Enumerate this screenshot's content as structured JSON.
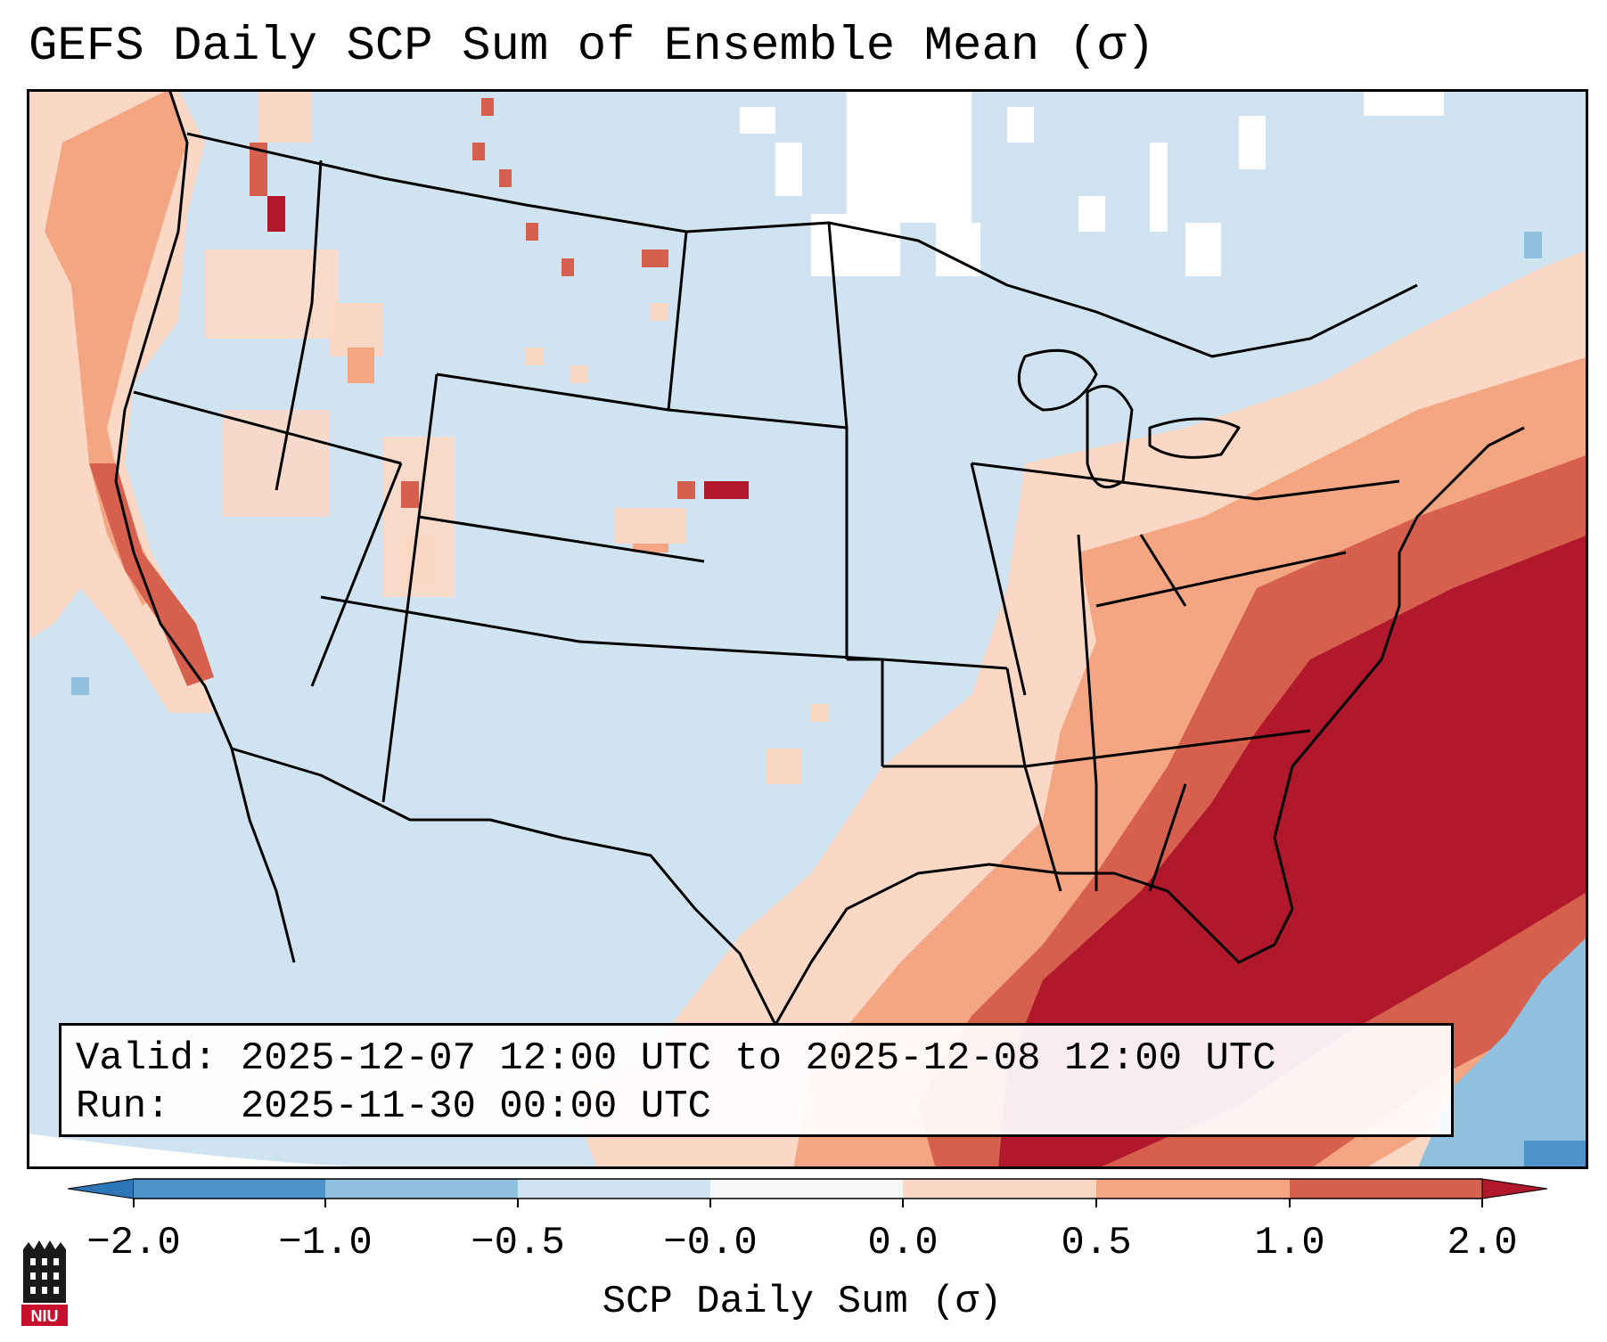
{
  "title": "GEFS Daily SCP Sum of Ensemble Mean (σ)",
  "info": {
    "valid_label": "Valid:",
    "valid_value": "2025-12-07 12:00 UTC to 2025-12-08 12:00 UTC",
    "run_label": "Run:",
    "run_value": "2025-11-30 00:00 UTC"
  },
  "colorbar": {
    "label": "SCP Daily Sum (σ)",
    "ticks": [
      "−2.0",
      "−1.0",
      "−0.5",
      "−0.0",
      "0.0",
      "0.5",
      "1.0",
      "2.0"
    ],
    "bins": [
      {
        "range": "< −2.0",
        "color": "#2f76b8"
      },
      {
        "range": "−2.0 to −1.0",
        "color": "#4d93c9"
      },
      {
        "range": "−1.0 to −0.5",
        "color": "#8fc0de"
      },
      {
        "range": "−0.5 to −0.0",
        "color": "#cfe3f0"
      },
      {
        "range": "−0.0 to 0.0",
        "color": "#f7f7f7"
      },
      {
        "range": "0.0 to 0.5",
        "color": "#fbd8c5"
      },
      {
        "range": "0.5 to 1.0",
        "color": "#f4a582"
      },
      {
        "range": "1.0 to 2.0",
        "color": "#d6604d"
      },
      {
        "range": "> 2.0",
        "color": "#b2182b"
      }
    ]
  },
  "map": {
    "background_color": "#cfe3f0",
    "regions": [
      {
        "label": "west coast",
        "level": "0.0 to 0.5"
      },
      {
        "label": "southeast",
        "level": "> 2.0"
      },
      {
        "label": "caribbean",
        "level": "−1.0 to −0.5"
      }
    ]
  },
  "logo": {
    "text": "NIU",
    "icon": "niu-logo-icon"
  }
}
